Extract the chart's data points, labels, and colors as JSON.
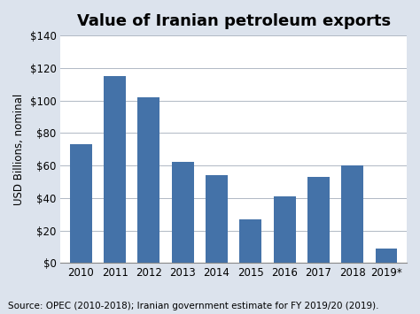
{
  "title": "Value of Iranian petroleum exports",
  "categories": [
    "2010",
    "2011",
    "2012",
    "2013",
    "2014",
    "2015",
    "2016",
    "2017",
    "2018",
    "2019*"
  ],
  "values": [
    73,
    115,
    102,
    62,
    54,
    27,
    41,
    53,
    60,
    9
  ],
  "bar_color": "#4472a8",
  "ylabel": "USD Billions, nominal",
  "ylim": [
    0,
    140
  ],
  "yticks": [
    0,
    20,
    40,
    60,
    80,
    100,
    120,
    140
  ],
  "source_text": "Source: OPEC (2010-2018); Iranian government estimate for FY 2019/20 (2019).",
  "background_color": "#dce3ed",
  "plot_bg_color": "#ffffff",
  "title_fontsize": 13,
  "axis_fontsize": 8.5,
  "source_fontsize": 7.5,
  "ylabel_fontsize": 8.5
}
